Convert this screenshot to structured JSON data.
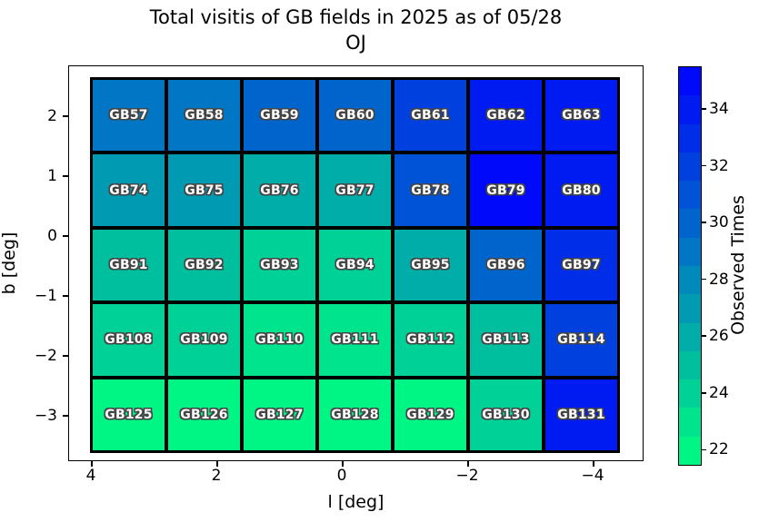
{
  "figure": {
    "title_line1": "Total visitis of GB fields in 2025 as of 05/28",
    "title_line2": "OJ",
    "xlabel": "l [deg]",
    "ylabel": "b [deg]",
    "colorbar_label": "Observed Times"
  },
  "chart_data": {
    "type": "heatmap",
    "title": "Total visitis of GB fields in 2025 as of 05/28 OJ",
    "xlabel": "l [deg]",
    "ylabel": "b [deg]",
    "x_tick_labels": [
      "4",
      "2",
      "0",
      "−2",
      "−4"
    ],
    "y_tick_labels": [
      "2",
      "1",
      "0",
      "−1",
      "−2",
      "−3"
    ],
    "colorbar": {
      "label": "Observed Times",
      "ticks": [
        22,
        24,
        26,
        28,
        30,
        32,
        34
      ],
      "range": [
        21.5,
        35.5
      ],
      "bands": 14,
      "colormap": "winter_r",
      "low_color": "#00f684",
      "high_color": "#0009fa"
    },
    "grid": {
      "columns": 7,
      "rows": 5,
      "cells": [
        [
          {
            "label": "GB57",
            "value": 29
          },
          {
            "label": "GB58",
            "value": 29
          },
          {
            "label": "GB59",
            "value": 30
          },
          {
            "label": "GB60",
            "value": 30
          },
          {
            "label": "GB61",
            "value": 32
          },
          {
            "label": "GB62",
            "value": 34
          },
          {
            "label": "GB63",
            "value": 34
          }
        ],
        [
          {
            "label": "GB74",
            "value": 27
          },
          {
            "label": "GB75",
            "value": 27
          },
          {
            "label": "GB76",
            "value": 26
          },
          {
            "label": "GB77",
            "value": 26
          },
          {
            "label": "GB78",
            "value": 31
          },
          {
            "label": "GB79",
            "value": 35
          },
          {
            "label": "GB80",
            "value": 34
          }
        ],
        [
          {
            "label": "GB91",
            "value": 25
          },
          {
            "label": "GB92",
            "value": 25
          },
          {
            "label": "GB93",
            "value": 24
          },
          {
            "label": "GB94",
            "value": 24
          },
          {
            "label": "GB95",
            "value": 26
          },
          {
            "label": "GB96",
            "value": 30
          },
          {
            "label": "GB97",
            "value": 33
          }
        ],
        [
          {
            "label": "GB108",
            "value": 24
          },
          {
            "label": "GB109",
            "value": 24
          },
          {
            "label": "GB110",
            "value": 23
          },
          {
            "label": "GB111",
            "value": 23
          },
          {
            "label": "GB112",
            "value": 24
          },
          {
            "label": "GB113",
            "value": 25
          },
          {
            "label": "GB114",
            "value": 32
          }
        ],
        [
          {
            "label": "GB125",
            "value": 22
          },
          {
            "label": "GB126",
            "value": 22
          },
          {
            "label": "GB127",
            "value": 22
          },
          {
            "label": "GB128",
            "value": 22
          },
          {
            "label": "GB129",
            "value": 22
          },
          {
            "label": "GB130",
            "value": 24
          },
          {
            "label": "GB131",
            "value": 34
          }
        ]
      ]
    }
  }
}
